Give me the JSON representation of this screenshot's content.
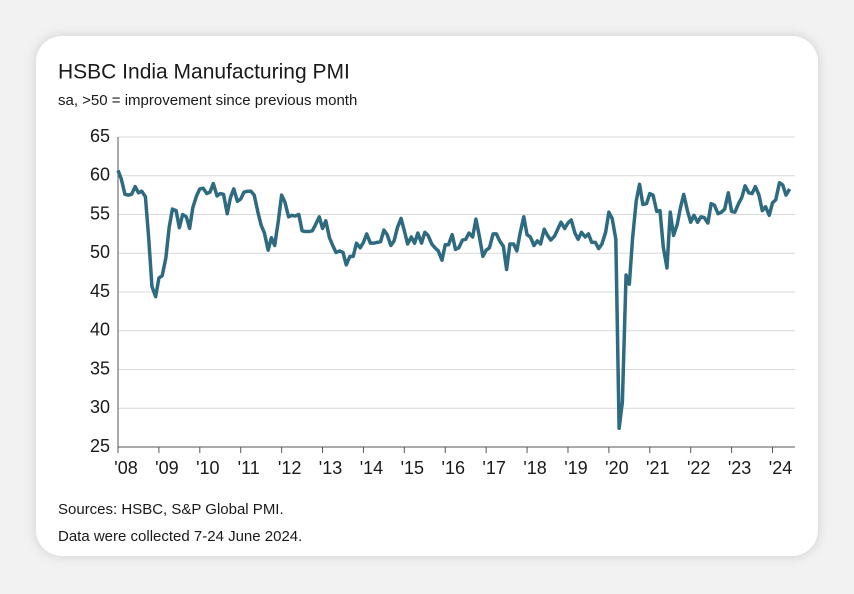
{
  "chart_data": {
    "type": "line",
    "title": "HSBC India Manufacturing PMI",
    "subtitle": "sa, >50 = improvement since previous month",
    "notes": [
      "Sources: HSBC, S&P Global PMI.",
      "Data were collected 7-24 June 2024."
    ],
    "color": "#2e6b80",
    "grid": true,
    "xlim": [
      2008,
      2024.55
    ],
    "ylim": [
      25,
      65
    ],
    "yticks": [
      25,
      30,
      35,
      40,
      45,
      50,
      55,
      60,
      65
    ],
    "xticks": [
      {
        "value": 2008,
        "label": "'08"
      },
      {
        "value": 2009,
        "label": "'09"
      },
      {
        "value": 2010,
        "label": "'10"
      },
      {
        "value": 2011,
        "label": "'11"
      },
      {
        "value": 2012,
        "label": "'12"
      },
      {
        "value": 2013,
        "label": "'13"
      },
      {
        "value": 2014,
        "label": "'14"
      },
      {
        "value": 2015,
        "label": "'15"
      },
      {
        "value": 2016,
        "label": "'16"
      },
      {
        "value": 2017,
        "label": "'17"
      },
      {
        "value": 2018,
        "label": "'18"
      },
      {
        "value": 2019,
        "label": "'19"
      },
      {
        "value": 2020,
        "label": "'20"
      },
      {
        "value": 2021,
        "label": "'21"
      },
      {
        "value": 2022,
        "label": "'22"
      },
      {
        "value": 2023,
        "label": "'23"
      },
      {
        "value": 2024,
        "label": "'24"
      }
    ],
    "x": [
      2008.0,
      2008.08,
      2008.17,
      2008.25,
      2008.33,
      2008.42,
      2008.5,
      2008.58,
      2008.67,
      2008.75,
      2008.83,
      2008.92,
      2009.0,
      2009.08,
      2009.17,
      2009.25,
      2009.33,
      2009.42,
      2009.5,
      2009.58,
      2009.67,
      2009.75,
      2009.83,
      2009.92,
      2010.0,
      2010.08,
      2010.17,
      2010.25,
      2010.33,
      2010.42,
      2010.5,
      2010.58,
      2010.67,
      2010.75,
      2010.83,
      2010.92,
      2011.0,
      2011.08,
      2011.17,
      2011.25,
      2011.33,
      2011.42,
      2011.5,
      2011.58,
      2011.67,
      2011.75,
      2011.83,
      2011.92,
      2012.0,
      2012.08,
      2012.17,
      2012.25,
      2012.33,
      2012.42,
      2012.5,
      2012.58,
      2012.67,
      2012.75,
      2012.83,
      2012.92,
      2013.0,
      2013.08,
      2013.17,
      2013.25,
      2013.33,
      2013.42,
      2013.5,
      2013.58,
      2013.67,
      2013.75,
      2013.83,
      2013.92,
      2014.0,
      2014.08,
      2014.17,
      2014.25,
      2014.33,
      2014.42,
      2014.5,
      2014.58,
      2014.67,
      2014.75,
      2014.83,
      2014.92,
      2015.0,
      2015.08,
      2015.17,
      2015.25,
      2015.33,
      2015.42,
      2015.5,
      2015.58,
      2015.67,
      2015.75,
      2015.83,
      2015.92,
      2016.0,
      2016.08,
      2016.17,
      2016.25,
      2016.33,
      2016.42,
      2016.5,
      2016.58,
      2016.67,
      2016.75,
      2016.83,
      2016.92,
      2017.0,
      2017.08,
      2017.17,
      2017.25,
      2017.33,
      2017.42,
      2017.5,
      2017.58,
      2017.67,
      2017.75,
      2017.83,
      2017.92,
      2018.0,
      2018.08,
      2018.17,
      2018.25,
      2018.33,
      2018.42,
      2018.5,
      2018.58,
      2018.67,
      2018.75,
      2018.83,
      2018.92,
      2019.0,
      2019.08,
      2019.17,
      2019.25,
      2019.33,
      2019.42,
      2019.5,
      2019.58,
      2019.67,
      2019.75,
      2019.83,
      2019.92,
      2020.0,
      2020.08,
      2020.17,
      2020.25,
      2020.33,
      2020.42,
      2020.5,
      2020.58,
      2020.67,
      2020.75,
      2020.83,
      2020.92,
      2021.0,
      2021.08,
      2021.17,
      2021.25,
      2021.33,
      2021.42,
      2021.5,
      2021.58,
      2021.67,
      2021.75,
      2021.83,
      2021.92,
      2022.0,
      2022.08,
      2022.17,
      2022.25,
      2022.33,
      2022.42,
      2022.5,
      2022.58,
      2022.67,
      2022.75,
      2022.83,
      2022.92,
      2023.0,
      2023.08,
      2023.17,
      2023.25,
      2023.33,
      2023.42,
      2023.5,
      2023.58,
      2023.67,
      2023.75,
      2023.83,
      2023.92,
      2024.0,
      2024.08,
      2024.17,
      2024.25,
      2024.33,
      2024.42
    ],
    "values": [
      60.7,
      59.6,
      57.6,
      57.5,
      57.6,
      58.6,
      57.8,
      58.0,
      57.3,
      52.0,
      45.7,
      44.4,
      46.8,
      47.1,
      49.4,
      53.3,
      55.7,
      55.5,
      53.3,
      55.0,
      54.7,
      53.2,
      55.9,
      57.4,
      58.3,
      58.4,
      57.7,
      57.9,
      59.0,
      57.4,
      57.7,
      57.6,
      55.1,
      57.2,
      58.3,
      56.7,
      57.0,
      57.9,
      58.0,
      58.0,
      57.5,
      55.3,
      53.6,
      52.6,
      50.4,
      52.0,
      51.0,
      54.2,
      57.5,
      56.6,
      54.7,
      54.9,
      54.8,
      55.0,
      52.9,
      52.8,
      52.8,
      52.9,
      53.7,
      54.7,
      53.2,
      54.2,
      52.0,
      51.0,
      50.1,
      50.3,
      50.1,
      48.5,
      49.6,
      49.6,
      51.3,
      50.7,
      51.4,
      52.5,
      51.3,
      51.3,
      51.4,
      51.5,
      53.0,
      52.4,
      51.0,
      51.6,
      53.3,
      54.5,
      52.9,
      51.2,
      52.1,
      51.3,
      52.6,
      51.3,
      52.7,
      52.3,
      51.2,
      50.7,
      50.3,
      49.1,
      51.1,
      51.1,
      52.4,
      50.5,
      50.7,
      51.7,
      51.8,
      52.6,
      52.1,
      54.4,
      52.3,
      49.6,
      50.4,
      50.7,
      52.5,
      52.5,
      51.6,
      50.9,
      47.9,
      51.2,
      51.2,
      50.3,
      52.6,
      54.7,
      52.4,
      52.1,
      51.0,
      51.6,
      51.2,
      53.1,
      52.3,
      51.7,
      52.2,
      53.1,
      54.0,
      53.2,
      53.9,
      54.3,
      52.6,
      51.8,
      52.7,
      52.1,
      52.5,
      51.4,
      51.4,
      50.6,
      51.2,
      52.7,
      55.3,
      54.5,
      51.8,
      27.4,
      30.8,
      47.2,
      46.0,
      52.0,
      56.8,
      58.9,
      56.3,
      56.4,
      57.7,
      57.5,
      55.4,
      55.5,
      50.8,
      48.1,
      55.3,
      52.3,
      53.7,
      55.9,
      57.6,
      55.5,
      54.0,
      54.9,
      54.0,
      54.7,
      54.6,
      53.9,
      56.4,
      56.2,
      55.1,
      55.3,
      55.7,
      57.8,
      55.4,
      55.3,
      56.4,
      57.2,
      58.7,
      57.8,
      57.7,
      58.6,
      57.5,
      55.5,
      56.0,
      54.9,
      56.5,
      56.9,
      59.1,
      58.8,
      57.5,
      58.3
    ]
  }
}
